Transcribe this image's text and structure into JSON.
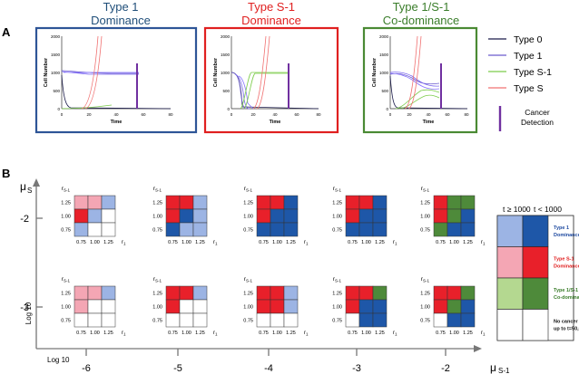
{
  "panel_a": {
    "label": "A",
    "plots": [
      {
        "title_line1": "Type 1",
        "title_line2": "Dominance",
        "title_color": "#1f4e79",
        "frame_color": "#2e5597",
        "ylabel": "Cell Number",
        "xlabel": "Time",
        "yticks": [
          "0",
          "500",
          "1000",
          "1500",
          "2000"
        ],
        "xticks": [
          "0",
          "20",
          "40",
          "60",
          "80"
        ]
      },
      {
        "title_line1": "Type S-1",
        "title_line2": "Dominance",
        "title_color": "#e02020",
        "frame_color": "#e02020",
        "ylabel": "Cell Number",
        "xlabel": "Time",
        "yticks": [
          "0",
          "500",
          "1000",
          "1500",
          "2000"
        ],
        "xticks": [
          "0",
          "20",
          "40",
          "60",
          "80"
        ]
      },
      {
        "title_line1": "Type 1/S-1",
        "title_line2": "Co-dominance",
        "title_color": "#3a7d2a",
        "frame_color": "#4a8a34",
        "ylabel": "Cell Number",
        "xlabel": "Time",
        "yticks": [
          "0",
          "500",
          "1000",
          "1500",
          "2000"
        ],
        "xticks": [
          "0",
          "20",
          "40",
          "60",
          "80"
        ]
      }
    ],
    "legend": [
      {
        "label": "Type 0",
        "color": "#1a1a4a"
      },
      {
        "label": "Type 1",
        "color": "#6a5acd"
      },
      {
        "label": "Type S-1",
        "color": "#7ccc4a"
      },
      {
        "label": "Type S",
        "color": "#f07070"
      }
    ],
    "detection_label_1": "Cancer",
    "detection_label_2": "Detection",
    "detection_color": "#7030a0"
  },
  "panel_b": {
    "label": "B",
    "y_axis_label": "μ",
    "y_axis_sub": "S",
    "x_axis_label": "μ",
    "x_axis_sub": "S-1",
    "log_label_y": "Log 10",
    "log_label_x": "Log 10",
    "y_ticks": [
      "-2",
      "-3"
    ],
    "x_ticks": [
      "-6",
      "-5",
      "-4",
      "-3",
      "-2"
    ],
    "grid_row_labels": [
      "1.25",
      "1.00",
      "0.75"
    ],
    "grid_col_labels": [
      "0.75",
      "1.00",
      "1.25"
    ],
    "grid_row_axis": "r",
    "grid_row_axis_sub": "S-1",
    "grid_col_axis": "r",
    "grid_col_axis_sub": "1",
    "grids_top": [
      [
        [
          "p",
          "p",
          "l"
        ],
        [
          "r",
          "l",
          "w"
        ],
        [
          "l",
          "w",
          "w"
        ]
      ],
      [
        [
          "r",
          "r",
          "l"
        ],
        [
          "r",
          "b",
          "l"
        ],
        [
          "b",
          "l",
          "l"
        ]
      ],
      [
        [
          "r",
          "r",
          "b"
        ],
        [
          "r",
          "b",
          "b"
        ],
        [
          "b",
          "b",
          "b"
        ]
      ],
      [
        [
          "r",
          "r",
          "b"
        ],
        [
          "r",
          "b",
          "b"
        ],
        [
          "b",
          "b",
          "b"
        ]
      ],
      [
        [
          "r",
          "g",
          "g"
        ],
        [
          "r",
          "g",
          "b"
        ],
        [
          "g",
          "b",
          "b"
        ]
      ]
    ],
    "grids_bottom": [
      [
        [
          "p",
          "p",
          "l"
        ],
        [
          "p",
          "w",
          "w"
        ],
        [
          "w",
          "w",
          "w"
        ]
      ],
      [
        [
          "r",
          "r",
          "l"
        ],
        [
          "r",
          "w",
          "w"
        ],
        [
          "w",
          "w",
          "w"
        ]
      ],
      [
        [
          "r",
          "r",
          "l"
        ],
        [
          "r",
          "r",
          "l"
        ],
        [
          "w",
          "w",
          "w"
        ]
      ],
      [
        [
          "r",
          "r",
          "g"
        ],
        [
          "r",
          "b",
          "b"
        ],
        [
          "w",
          "b",
          "b"
        ]
      ],
      [
        [
          "r",
          "r",
          "g"
        ],
        [
          "r",
          "g",
          "b"
        ],
        [
          "w",
          "b",
          "b"
        ]
      ]
    ],
    "cell_colors": {
      "p": "#f4a6b4",
      "r": "#e8202a",
      "l": "#9cb4e4",
      "b": "#1e57a8",
      "g": "#4e8a3a",
      "lg": "#b4d890",
      "w": "#ffffff"
    },
    "legend": {
      "header_left": "t ≥ 1000",
      "header_right": "t < 1000",
      "rows": [
        {
          "left": "#9cb4e4",
          "right": "#1e57a8",
          "text1": "Type 1",
          "text2": "Dominance",
          "text_color": "#1e4aa0"
        },
        {
          "left": "#f4a6b4",
          "right": "#e8202a",
          "text1": "Type S-1",
          "text2": "Dominance",
          "text_color": "#e02020"
        },
        {
          "left": "#b4d890",
          "right": "#4e8a3a",
          "text1": "Type 1/S-1",
          "text2": "Co-dominance",
          "text_color": "#3a7d2a"
        },
        {
          "left": "#ffffff",
          "right": "#ffffff",
          "text1": "No cancer cell",
          "text2": "up to t=50,000",
          "text_color": "#111111"
        }
      ]
    }
  }
}
